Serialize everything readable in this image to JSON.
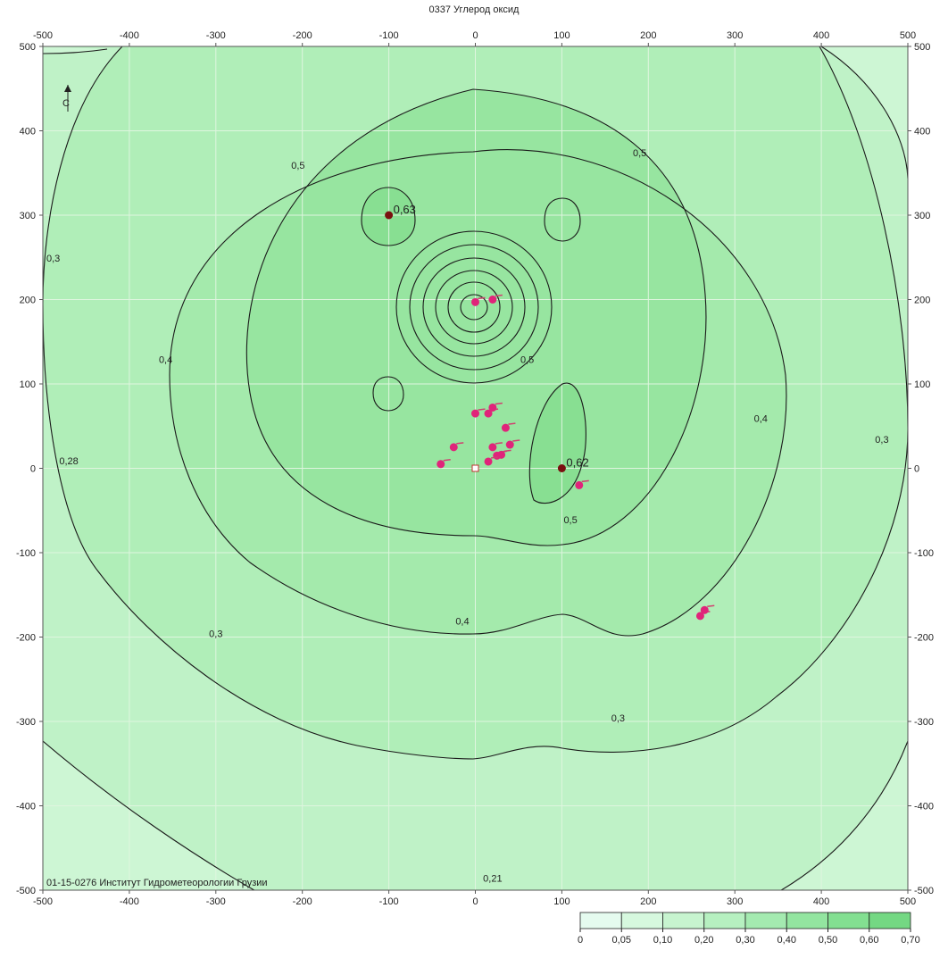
{
  "title": "0337 Углерод оксид",
  "credit": "01-15-0276 Институт Гидрометеорологии Грузии",
  "north_symbol": "north-arrow-icon",
  "axes": {
    "xlim": [
      -500,
      500
    ],
    "ylim": [
      -500,
      500
    ],
    "step": 100,
    "x_ticks": [
      "-500",
      "-400",
      "-300",
      "-200",
      "-100",
      "0",
      "100",
      "200",
      "300",
      "400",
      "500"
    ],
    "y_ticks": [
      "500",
      "400",
      "300",
      "200",
      "100",
      "0",
      "-100",
      "-200",
      "-300",
      "-400",
      "-500"
    ],
    "grid": true
  },
  "colors": {
    "grid": "#dff5df",
    "contour": "#1a1a1a",
    "source": "#e0247a",
    "max_point": "#7a1010"
  },
  "contour_labels": [
    {
      "text": "0,5",
      "x": -205,
      "y": 355
    },
    {
      "text": "0,5",
      "x": 190,
      "y": 370
    },
    {
      "text": "0,3",
      "x": -488,
      "y": 245
    },
    {
      "text": "0,4",
      "x": -358,
      "y": 125
    },
    {
      "text": "0,5",
      "x": 60,
      "y": 125
    },
    {
      "text": "0,4",
      "x": 330,
      "y": 55
    },
    {
      "text": "0,3",
      "x": 470,
      "y": 30
    },
    {
      "text": "0,5",
      "x": 110,
      "y": -65
    },
    {
      "text": "0,4",
      "x": -15,
      "y": -185
    },
    {
      "text": "0,3",
      "x": -300,
      "y": -200
    },
    {
      "text": "0,3",
      "x": 165,
      "y": -300
    },
    {
      "text": "0,28",
      "x": -470,
      "y": 5
    },
    {
      "text": "0,21",
      "x": 20,
      "y": -490
    }
  ],
  "markers": [
    {
      "name": "max-point",
      "text": "0,63",
      "x": -100,
      "y": 300
    },
    {
      "name": "max-point",
      "text": "0,62",
      "x": 100,
      "y": 0
    }
  ],
  "sources": [
    {
      "x": 0,
      "y": 197
    },
    {
      "x": 20,
      "y": 200
    },
    {
      "x": 0,
      "y": 65
    },
    {
      "x": 15,
      "y": 65
    },
    {
      "x": 20,
      "y": 72
    },
    {
      "x": 35,
      "y": 48
    },
    {
      "x": -25,
      "y": 25
    },
    {
      "x": 20,
      "y": 25
    },
    {
      "x": 40,
      "y": 28
    },
    {
      "x": 25,
      "y": 15
    },
    {
      "x": 30,
      "y": 16
    },
    {
      "x": 15,
      "y": 8
    },
    {
      "x": -40,
      "y": 5
    },
    {
      "x": 120,
      "y": -20
    },
    {
      "x": 260,
      "y": -175
    },
    {
      "x": 265,
      "y": -168
    }
  ],
  "center_marker": {
    "x": 0,
    "y": 0
  },
  "legend": {
    "labels": [
      "0",
      "0,05",
      "0,10",
      "0,20",
      "0,30",
      "0,40",
      "0,50",
      "0,60",
      "0,70"
    ],
    "colors": [
      "#e5fbef",
      "#d6f8de",
      "#c7f4cf",
      "#b6f0c0",
      "#a4eab0",
      "#93e5a0",
      "#83df91",
      "#74d883"
    ]
  }
}
